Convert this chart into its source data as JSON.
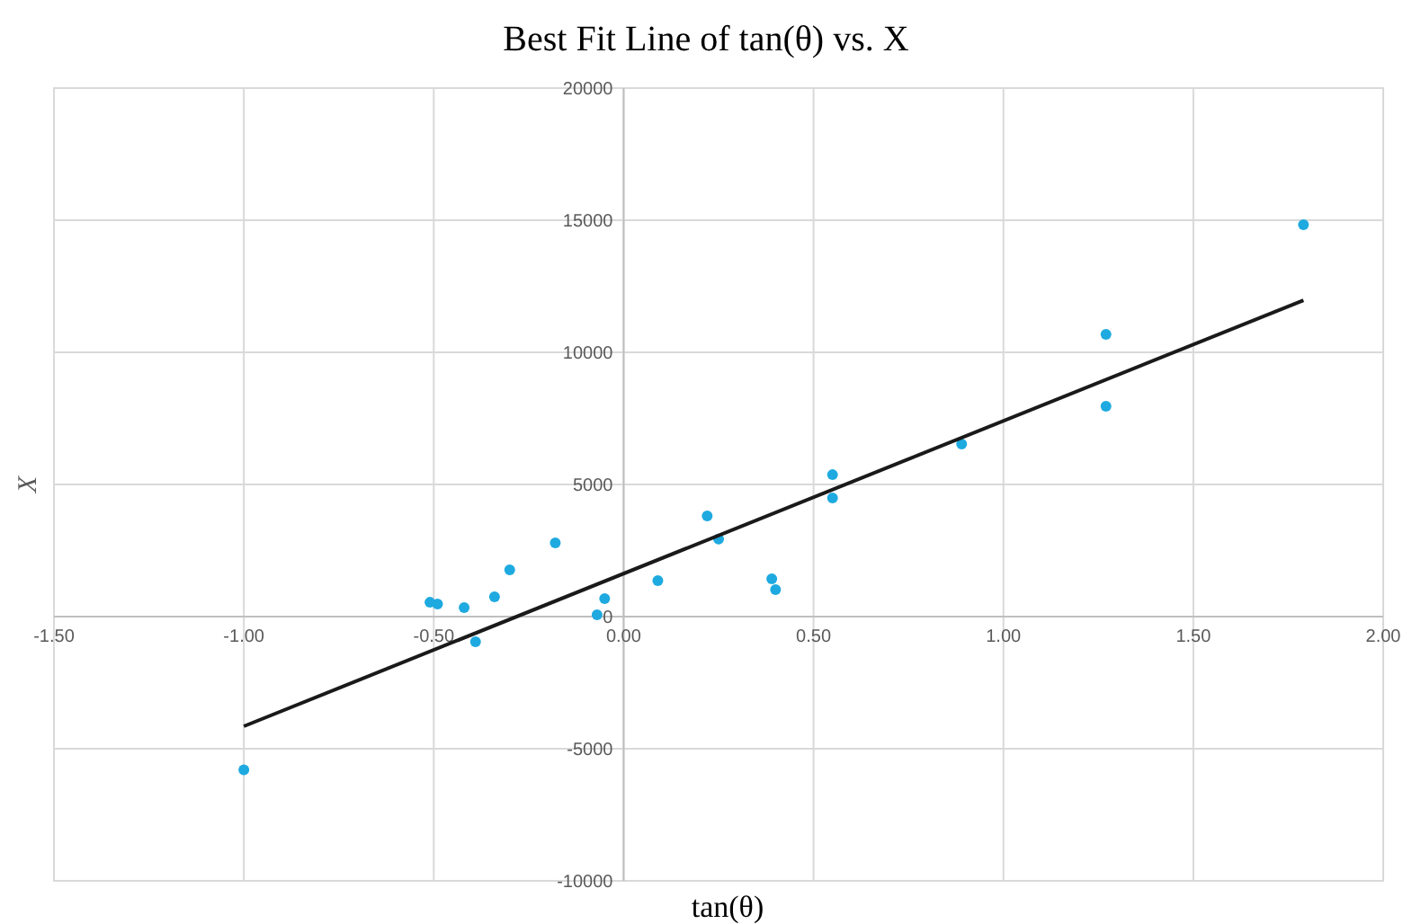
{
  "chart_data": {
    "type": "scatter",
    "title": "Best Fit Line of tan(θ) vs. X",
    "xlabel": "tan(θ)",
    "ylabel": "X",
    "xlim": [
      -1.5,
      2.0
    ],
    "xticks": [
      {
        "value": -1.5,
        "label": "-1.50"
      },
      {
        "value": -1.0,
        "label": "-1.00"
      },
      {
        "value": -0.5,
        "label": "-0.50"
      },
      {
        "value": 0,
        "label": "0.00"
      },
      {
        "value": 0.5,
        "label": "0.50"
      },
      {
        "value": 1.0,
        "label": "1.00"
      },
      {
        "value": 1.5,
        "label": "1.50"
      },
      {
        "value": 2.0,
        "label": "2.00"
      }
    ],
    "ylim": [
      -10000,
      20000
    ],
    "yticks": [
      -10000,
      -5000,
      0,
      5000,
      10000,
      15000,
      20000
    ],
    "grid": true,
    "marker": "circle",
    "series": [
      {
        "color": "#1eaae0",
        "x": [
          -1.0,
          -0.51,
          -0.49,
          -0.42,
          -0.39,
          -0.34,
          -0.3,
          -0.18,
          -0.07,
          -0.05,
          0.09,
          0.22,
          0.25,
          0.39,
          0.4,
          0.55,
          0.55,
          0.89,
          1.27,
          1.27,
          1.79
        ],
        "values": [
          -5800,
          540,
          480,
          340,
          -950,
          750,
          1770,
          2790,
          70,
          680,
          1360,
          3810,
          2930,
          1430,
          1020,
          5370,
          4490,
          6530,
          10680,
          7960,
          14830
        ]
      },
      {
        "type": "line",
        "color": "#1a1a1a",
        "marker": "none",
        "x": [
          -1.0,
          1.79
        ],
        "values": [
          -4150,
          11970
        ]
      }
    ]
  }
}
